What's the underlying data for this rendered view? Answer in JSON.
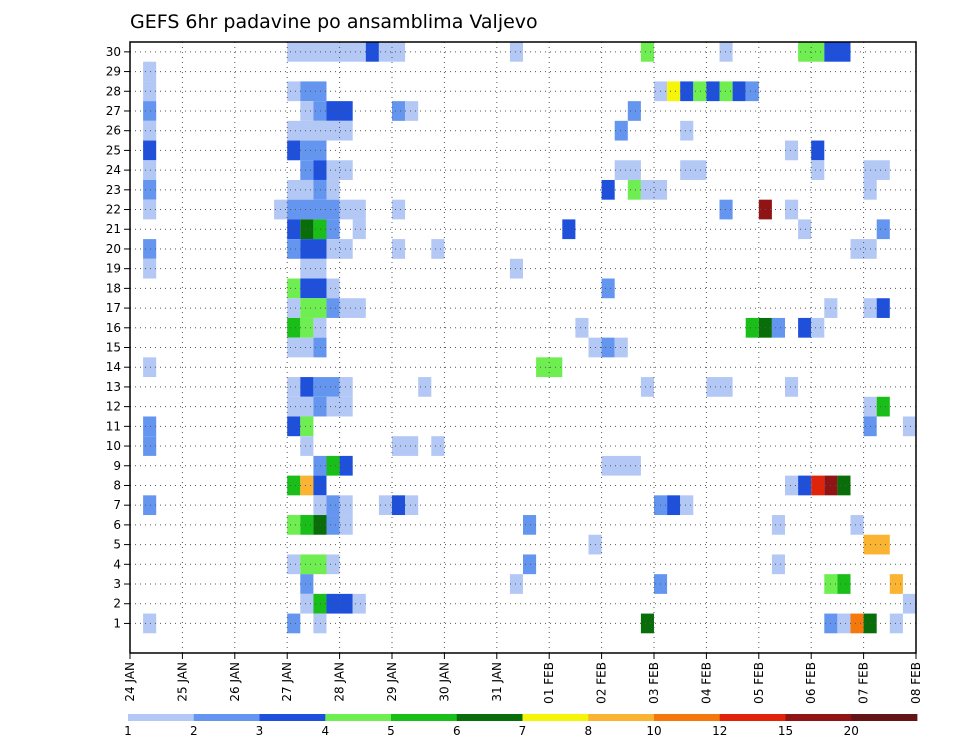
{
  "chart_data": {
    "type": "heatmap",
    "title": "GEFS 6hr padavine po ansamblima Valjevo",
    "xlabel": "",
    "ylabel": "",
    "x_ticks": [
      "24 JAN",
      "25 JAN",
      "26 JAN",
      "27 JAN",
      "28 JAN",
      "29 JAN",
      "30 JAN",
      "31 JAN",
      "01 FEB",
      "02 FEB",
      "03 FEB",
      "04 FEB",
      "05 FEB",
      "06 FEB",
      "07 FEB",
      "08 FEB"
    ],
    "y_ticks": [
      "1",
      "2",
      "3",
      "4",
      "5",
      "6",
      "7",
      "8",
      "9",
      "10",
      "11",
      "12",
      "13",
      "14",
      "15",
      "16",
      "17",
      "18",
      "19",
      "20",
      "21",
      "22",
      "23",
      "24",
      "25",
      "26",
      "27",
      "28",
      "29",
      "30"
    ],
    "xlim_steps": [
      0,
      60
    ],
    "ylim": [
      0,
      30
    ],
    "grid": true,
    "colorbar": {
      "labels": [
        "1",
        "2",
        "3",
        "4",
        "5",
        "6",
        "7",
        "8",
        "10",
        "12",
        "15",
        "20"
      ],
      "colors": [
        "#b4c8f5",
        "#6496f0",
        "#1e50dc",
        "#6eee50",
        "#19be19",
        "#096e09",
        "#f5f50a",
        "#fab432",
        "#f5780a",
        "#e1230a",
        "#911414",
        "#641414"
      ]
    },
    "cells_note": "each cell = [member, start_step, end_step, colorbar_class]; step = 6 hours from 24 JAN 00Z",
    "cells": [
      [
        30,
        12,
        18,
        0
      ],
      [
        30,
        18,
        19,
        2
      ],
      [
        30,
        19,
        21,
        0
      ],
      [
        30,
        29,
        30,
        0
      ],
      [
        30,
        39,
        40,
        3
      ],
      [
        30,
        45,
        46,
        0
      ],
      [
        30,
        51,
        53,
        3
      ],
      [
        30,
        53,
        55,
        2
      ],
      [
        29,
        1,
        2,
        0
      ],
      [
        28,
        1,
        2,
        0
      ],
      [
        28,
        12,
        13,
        0
      ],
      [
        28,
        13,
        15,
        1
      ],
      [
        28,
        40,
        41,
        0
      ],
      [
        28,
        41,
        42,
        6
      ],
      [
        28,
        42,
        43,
        2
      ],
      [
        28,
        43,
        44,
        3
      ],
      [
        28,
        44,
        45,
        2
      ],
      [
        28,
        45,
        46,
        3
      ],
      [
        28,
        46,
        47,
        2
      ],
      [
        28,
        47,
        48,
        1
      ],
      [
        27,
        1,
        2,
        1
      ],
      [
        27,
        13,
        14,
        0
      ],
      [
        27,
        14,
        15,
        1
      ],
      [
        27,
        15,
        17,
        2
      ],
      [
        27,
        20,
        21,
        1
      ],
      [
        27,
        21,
        22,
        0
      ],
      [
        27,
        38,
        39,
        1
      ],
      [
        26,
        1,
        2,
        0
      ],
      [
        26,
        12,
        17,
        0
      ],
      [
        26,
        37,
        38,
        1
      ],
      [
        26,
        42,
        43,
        0
      ],
      [
        25,
        1,
        2,
        2
      ],
      [
        25,
        12,
        13,
        2
      ],
      [
        25,
        13,
        15,
        1
      ],
      [
        25,
        50,
        51,
        0
      ],
      [
        25,
        52,
        53,
        2
      ],
      [
        24,
        1,
        2,
        0
      ],
      [
        24,
        13,
        14,
        1
      ],
      [
        24,
        14,
        15,
        2
      ],
      [
        24,
        15,
        17,
        0
      ],
      [
        24,
        37,
        39,
        0
      ],
      [
        24,
        42,
        44,
        0
      ],
      [
        24,
        52,
        53,
        0
      ],
      [
        24,
        56,
        58,
        0
      ],
      [
        23,
        1,
        2,
        1
      ],
      [
        23,
        12,
        14,
        0
      ],
      [
        23,
        14,
        15,
        1
      ],
      [
        23,
        15,
        16,
        0
      ],
      [
        23,
        36,
        37,
        2
      ],
      [
        23,
        38,
        39,
        3
      ],
      [
        23,
        39,
        41,
        0
      ],
      [
        23,
        56,
        57,
        0
      ],
      [
        22,
        1,
        2,
        0
      ],
      [
        22,
        11,
        12,
        0
      ],
      [
        22,
        12,
        16,
        1
      ],
      [
        22,
        16,
        18,
        0
      ],
      [
        22,
        20,
        21,
        0
      ],
      [
        22,
        45,
        46,
        1
      ],
      [
        22,
        48,
        49,
        10
      ],
      [
        22,
        50,
        51,
        0
      ],
      [
        21,
        12,
        13,
        2
      ],
      [
        21,
        13,
        14,
        5
      ],
      [
        21,
        14,
        15,
        4
      ],
      [
        21,
        15,
        16,
        1
      ],
      [
        21,
        17,
        18,
        0
      ],
      [
        21,
        33,
        34,
        2
      ],
      [
        21,
        51,
        52,
        0
      ],
      [
        21,
        57,
        58,
        1
      ],
      [
        20,
        1,
        2,
        1
      ],
      [
        20,
        12,
        13,
        1
      ],
      [
        20,
        13,
        15,
        2
      ],
      [
        20,
        15,
        17,
        0
      ],
      [
        20,
        20,
        21,
        0
      ],
      [
        20,
        23,
        24,
        0
      ],
      [
        20,
        55,
        57,
        0
      ],
      [
        19,
        1,
        2,
        0
      ],
      [
        19,
        13,
        15,
        0
      ],
      [
        19,
        29,
        30,
        0
      ],
      [
        18,
        12,
        13,
        3
      ],
      [
        18,
        13,
        15,
        2
      ],
      [
        18,
        15,
        16,
        0
      ],
      [
        18,
        36,
        37,
        1
      ],
      [
        17,
        12,
        13,
        0
      ],
      [
        17,
        13,
        15,
        3
      ],
      [
        17,
        15,
        16,
        1
      ],
      [
        17,
        16,
        18,
        0
      ],
      [
        17,
        53,
        54,
        0
      ],
      [
        17,
        56,
        57,
        0
      ],
      [
        17,
        57,
        58,
        2
      ],
      [
        16,
        12,
        13,
        4
      ],
      [
        16,
        13,
        14,
        3
      ],
      [
        16,
        14,
        15,
        0
      ],
      [
        16,
        34,
        35,
        0
      ],
      [
        16,
        47,
        48,
        4
      ],
      [
        16,
        48,
        49,
        5
      ],
      [
        16,
        49,
        50,
        1
      ],
      [
        16,
        51,
        52,
        2
      ],
      [
        16,
        52,
        53,
        0
      ],
      [
        15,
        12,
        14,
        0
      ],
      [
        15,
        14,
        15,
        1
      ],
      [
        15,
        35,
        36,
        0
      ],
      [
        15,
        36,
        37,
        1
      ],
      [
        15,
        37,
        38,
        0
      ],
      [
        14,
        1,
        2,
        0
      ],
      [
        14,
        31,
        33,
        3
      ],
      [
        13,
        12,
        13,
        0
      ],
      [
        13,
        13,
        14,
        2
      ],
      [
        13,
        14,
        16,
        1
      ],
      [
        13,
        16,
        17,
        0
      ],
      [
        13,
        22,
        23,
        0
      ],
      [
        13,
        39,
        40,
        0
      ],
      [
        13,
        44,
        46,
        0
      ],
      [
        13,
        50,
        51,
        0
      ],
      [
        12,
        12,
        14,
        0
      ],
      [
        12,
        14,
        15,
        1
      ],
      [
        12,
        15,
        17,
        0
      ],
      [
        12,
        56,
        57,
        0
      ],
      [
        12,
        57,
        58,
        4
      ],
      [
        11,
        1,
        2,
        1
      ],
      [
        11,
        12,
        13,
        2
      ],
      [
        11,
        13,
        14,
        3
      ],
      [
        11,
        56,
        57,
        1
      ],
      [
        11,
        59,
        60,
        0
      ],
      [
        10,
        1,
        2,
        1
      ],
      [
        10,
        13,
        14,
        0
      ],
      [
        10,
        20,
        22,
        0
      ],
      [
        10,
        23,
        24,
        0
      ],
      [
        9,
        14,
        15,
        1
      ],
      [
        9,
        15,
        16,
        4
      ],
      [
        9,
        16,
        17,
        2
      ],
      [
        9,
        36,
        39,
        0
      ],
      [
        8,
        12,
        13,
        4
      ],
      [
        8,
        13,
        14,
        7
      ],
      [
        8,
        14,
        15,
        2
      ],
      [
        8,
        50,
        51,
        0
      ],
      [
        8,
        51,
        52,
        2
      ],
      [
        8,
        52,
        53,
        9
      ],
      [
        8,
        53,
        54,
        10
      ],
      [
        8,
        54,
        55,
        5
      ],
      [
        7,
        1,
        2,
        1
      ],
      [
        7,
        14,
        15,
        0
      ],
      [
        7,
        15,
        16,
        1
      ],
      [
        7,
        16,
        17,
        0
      ],
      [
        7,
        19,
        20,
        0
      ],
      [
        7,
        20,
        21,
        2
      ],
      [
        7,
        21,
        22,
        0
      ],
      [
        7,
        40,
        41,
        1
      ],
      [
        7,
        41,
        42,
        2
      ],
      [
        7,
        42,
        43,
        0
      ],
      [
        6,
        12,
        13,
        3
      ],
      [
        6,
        13,
        14,
        4
      ],
      [
        6,
        14,
        15,
        5
      ],
      [
        6,
        15,
        16,
        1
      ],
      [
        6,
        16,
        17,
        0
      ],
      [
        6,
        30,
        31,
        1
      ],
      [
        6,
        49,
        50,
        0
      ],
      [
        6,
        55,
        56,
        0
      ],
      [
        5,
        35,
        36,
        0
      ],
      [
        5,
        56,
        58,
        7
      ],
      [
        4,
        12,
        13,
        0
      ],
      [
        4,
        13,
        15,
        3
      ],
      [
        4,
        15,
        16,
        0
      ],
      [
        4,
        30,
        31,
        1
      ],
      [
        4,
        49,
        50,
        0
      ],
      [
        3,
        13,
        14,
        1
      ],
      [
        3,
        29,
        30,
        0
      ],
      [
        3,
        40,
        41,
        1
      ],
      [
        3,
        58,
        59,
        7
      ],
      [
        2,
        13,
        14,
        0
      ],
      [
        2,
        14,
        15,
        4
      ],
      [
        2,
        15,
        17,
        2
      ],
      [
        2,
        17,
        18,
        0
      ],
      [
        2,
        59,
        60,
        0
      ],
      [
        1,
        1,
        2,
        0
      ],
      [
        1,
        12,
        13,
        1
      ],
      [
        1,
        14,
        15,
        0
      ],
      [
        1,
        39,
        40,
        5
      ],
      [
        1,
        53,
        54,
        1
      ],
      [
        1,
        54,
        55,
        0
      ],
      [
        1,
        55,
        56,
        8
      ],
      [
        1,
        56,
        57,
        5
      ],
      [
        1,
        58,
        59,
        0
      ]
    ],
    "extra_cells": [
      [
        3,
        53,
        54,
        3
      ],
      [
        3,
        54,
        55,
        4
      ]
    ]
  }
}
